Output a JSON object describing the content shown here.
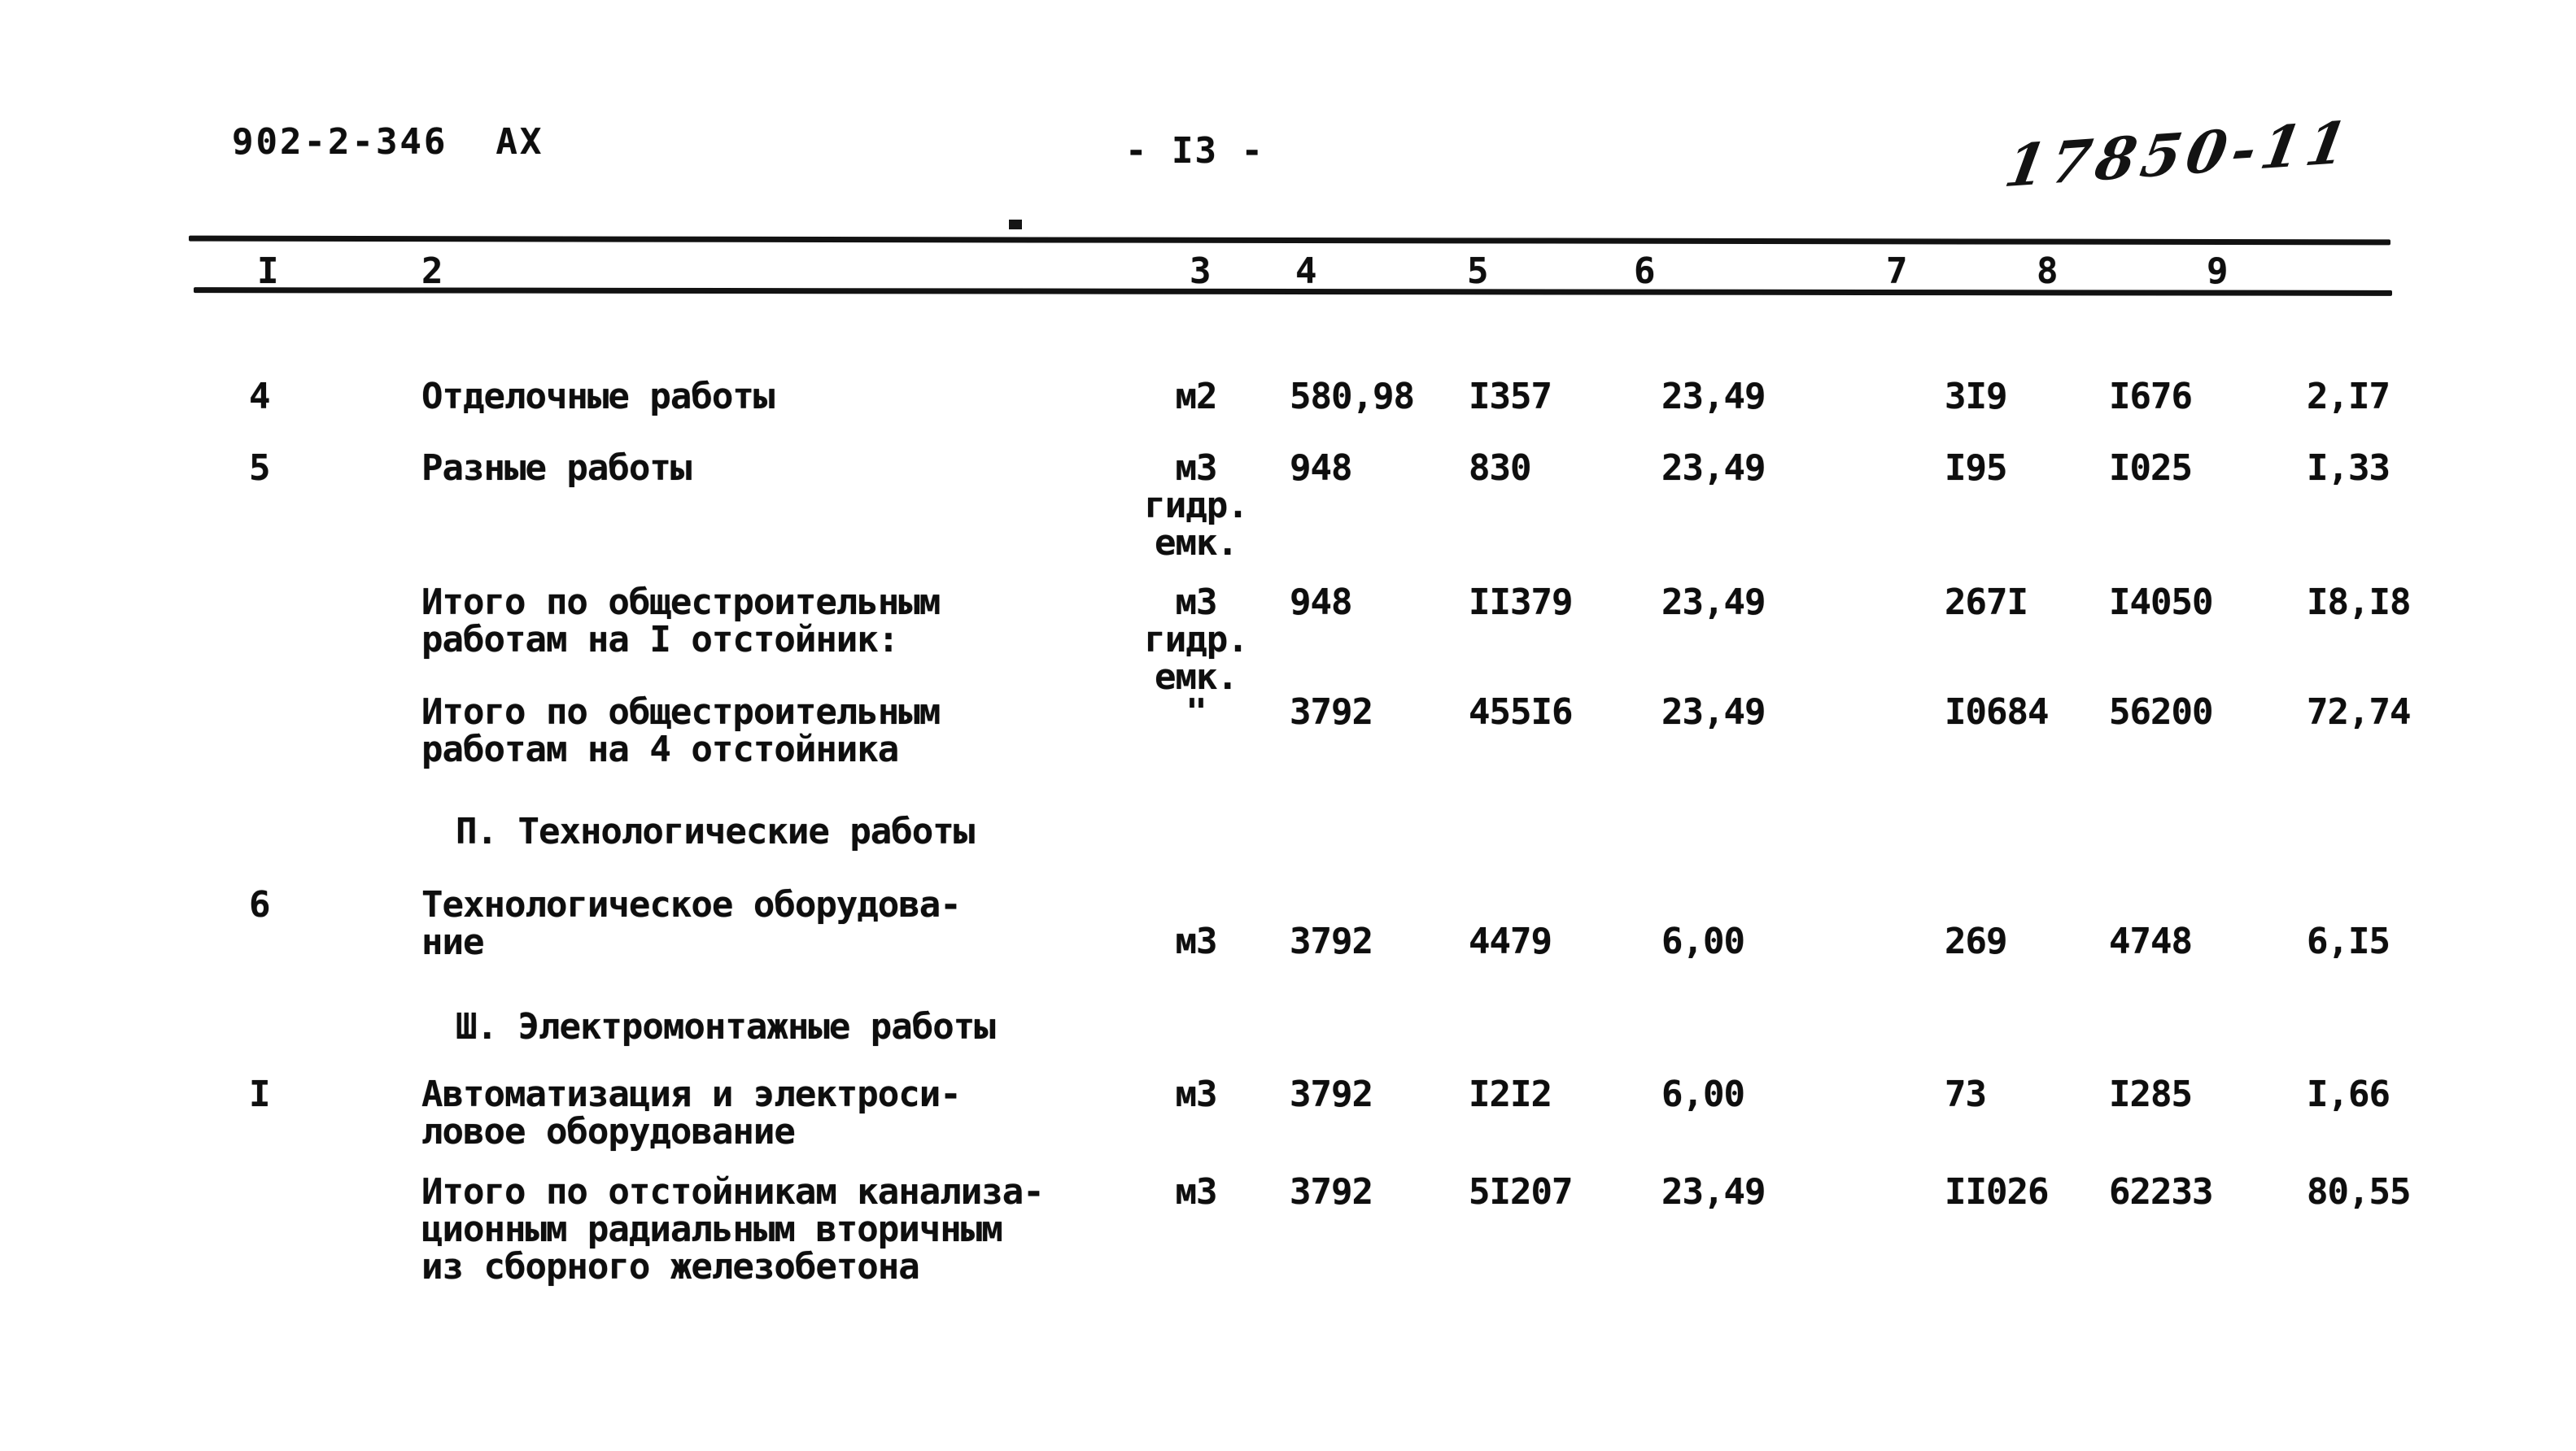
{
  "page": {
    "doc_code": "902-2-346  АХ",
    "page_number": "- I3 -",
    "handwritten_mark": "17850-11"
  },
  "table": {
    "column_numbers": [
      "I",
      "2",
      "3",
      "4",
      "5",
      "6",
      "7",
      "8",
      "9"
    ],
    "rows": [
      {
        "type": "item",
        "num": "4",
        "name_lines": [
          "Отделочные работы"
        ],
        "unit_lines": [
          "м2"
        ],
        "values": [
          "580,98",
          "I357",
          "23,49",
          "3I9",
          "I676",
          "2,I7"
        ]
      },
      {
        "type": "item",
        "num": "5",
        "name_lines": [
          "Разные работы"
        ],
        "unit_lines": [
          "м3",
          "гидр.",
          "емк."
        ],
        "values": [
          "948",
          "830",
          "23,49",
          "I95",
          "I025",
          "I,33"
        ]
      },
      {
        "type": "total",
        "num": "",
        "name_lines": [
          "Итого по общестроительным",
          "работам на I отстойник:"
        ],
        "unit_lines": [
          "м3",
          "гидр.",
          "емк."
        ],
        "values": [
          "948",
          "II379",
          "23,49",
          "267I",
          "I4050",
          "I8,I8"
        ]
      },
      {
        "type": "total",
        "num": "",
        "name_lines": [
          "Итого по общестроительным",
          "работам на 4 отстойника"
        ],
        "unit_lines": [
          "\""
        ],
        "values": [
          "3792",
          "455I6",
          "23,49",
          "I0684",
          "56200",
          "72,74"
        ]
      },
      {
        "type": "section",
        "title": "П. Технологические работы"
      },
      {
        "type": "item",
        "num": "6",
        "name_lines": [
          "Технологическое оборудова-",
          "ние"
        ],
        "unit_lines": [
          "м3"
        ],
        "values": [
          "3792",
          "4479",
          "6,00",
          "269",
          "4748",
          "6,I5"
        ]
      },
      {
        "type": "section",
        "title": "Ш. Электромонтажные работы"
      },
      {
        "type": "item",
        "num": "I",
        "name_lines": [
          "Автоматизация и электроси-",
          "ловое оборудование"
        ],
        "unit_lines": [
          "м3"
        ],
        "values": [
          "3792",
          "I2I2",
          "6,00",
          "73",
          "I285",
          "I,66"
        ]
      },
      {
        "type": "total",
        "num": "",
        "name_lines": [
          "Итого по отстойникам канализа-",
          "ционным радиальным вторичным",
          "из сборного железобетона"
        ],
        "unit_lines": [
          "м3"
        ],
        "values": [
          "3792",
          "5I207",
          "23,49",
          "II026",
          "62233",
          "80,55"
        ]
      }
    ]
  }
}
